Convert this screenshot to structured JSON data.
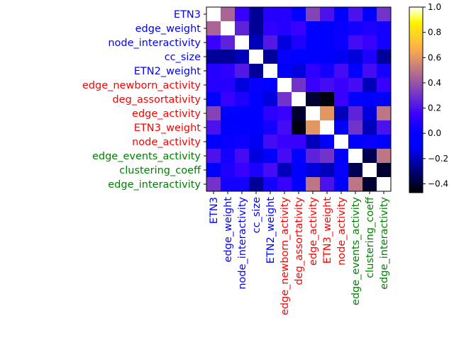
{
  "chart_data": {
    "type": "heatmap",
    "title": "",
    "labels": [
      "ETN3",
      "edge_weight",
      "node_interactivity",
      "cc_size",
      "ETN2_weight",
      "edge_newborn_activity",
      "deg_assortativity",
      "edge_activity",
      "ETN3_weight",
      "node_activity",
      "edge_events_activity",
      "clustering_coeff",
      "edge_interactivity"
    ],
    "label_groups": [
      "blue",
      "blue",
      "blue",
      "blue",
      "blue",
      "red",
      "red",
      "red",
      "red",
      "red",
      "green",
      "green",
      "green"
    ],
    "group_colors": {
      "blue": "#0000ff",
      "red": "#ff0000",
      "green": "#008000"
    },
    "colorscale": "gnuplot2",
    "vmin": -0.47,
    "vmax": 1.0,
    "colorbar_ticks": [
      "1.0",
      "0.8",
      "0.6",
      "0.4",
      "0.2",
      "0.0",
      "−0.2",
      "−0.4"
    ],
    "colorbar_tick_values": [
      1.0,
      0.8,
      0.6,
      0.4,
      0.2,
      0.0,
      -0.2,
      -0.4
    ],
    "matrix": [
      [
        1.0,
        0.45,
        0.15,
        -0.25,
        0.1,
        0.1,
        -0.05,
        0.35,
        0.2,
        0.0,
        0.2,
        -0.1,
        0.3
      ],
      [
        0.45,
        1.0,
        0.25,
        -0.25,
        0.12,
        0.1,
        0.15,
        0.0,
        -0.05,
        0.02,
        0.05,
        0.08,
        0.05
      ],
      [
        0.15,
        0.25,
        1.0,
        -0.2,
        0.22,
        -0.15,
        0.08,
        -0.05,
        -0.05,
        0.03,
        0.18,
        0.15,
        0.05
      ],
      [
        -0.25,
        -0.25,
        -0.2,
        1.0,
        -0.25,
        0.02,
        -0.02,
        -0.05,
        -0.1,
        -0.12,
        -0.15,
        0.08,
        -0.25
      ],
      [
        0.1,
        0.12,
        0.22,
        -0.25,
        1.0,
        -0.05,
        -0.15,
        0.12,
        0.05,
        0.18,
        -0.05,
        0.18,
        0.05
      ],
      [
        0.1,
        0.1,
        -0.15,
        0.02,
        -0.05,
        1.0,
        0.3,
        0.15,
        0.18,
        0.15,
        0.18,
        -0.2,
        0.15
      ],
      [
        -0.05,
        0.15,
        0.08,
        -0.02,
        -0.15,
        0.3,
        1.0,
        -0.4,
        -0.45,
        0.15,
        -0.05,
        -0.05,
        -0.05
      ],
      [
        0.35,
        0.0,
        -0.05,
        -0.05,
        0.12,
        0.15,
        -0.4,
        1.0,
        0.6,
        -0.2,
        0.25,
        -0.15,
        0.5
      ],
      [
        0.2,
        -0.05,
        -0.05,
        -0.1,
        0.05,
        0.18,
        -0.45,
        0.6,
        1.0,
        -0.1,
        0.3,
        -0.2,
        0.2
      ],
      [
        0.0,
        0.02,
        0.03,
        -0.12,
        0.18,
        0.15,
        0.15,
        -0.2,
        -0.1,
        1.0,
        -0.05,
        0.02,
        -0.1
      ],
      [
        0.2,
        0.05,
        0.18,
        -0.15,
        -0.05,
        0.18,
        -0.05,
        0.25,
        0.3,
        -0.05,
        1.0,
        -0.35,
        0.5
      ],
      [
        -0.1,
        0.08,
        0.15,
        0.08,
        0.18,
        -0.2,
        -0.05,
        -0.15,
        -0.2,
        0.02,
        -0.35,
        1.0,
        -0.4
      ],
      [
        0.3,
        0.05,
        0.05,
        -0.25,
        0.05,
        0.15,
        -0.05,
        0.5,
        0.2,
        -0.1,
        0.5,
        -0.4,
        1.0
      ]
    ]
  }
}
